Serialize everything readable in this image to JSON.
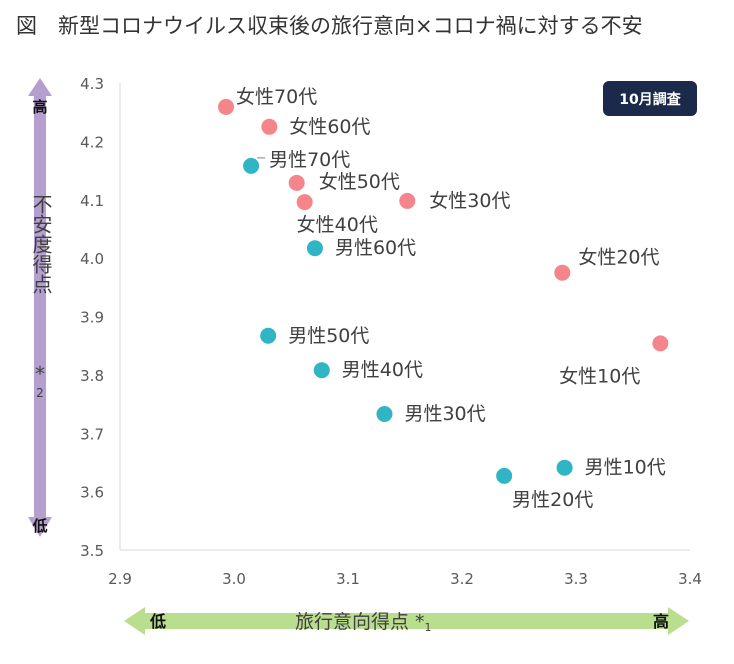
{
  "title": "図　新型コロナウイルス収束後の旅行意向×コロナ禍に対する不安",
  "badge": "10月調査",
  "colors": {
    "female": "#f4868b",
    "male": "#2fb5c4",
    "y_arrow": "#b49fcf",
    "x_arrow": "#b9de8e"
  },
  "y_arrow": {
    "top_label": "高",
    "bottom_label": "低",
    "label": "不安度得点",
    "note": "*2"
  },
  "x_arrow": {
    "left_label": "低",
    "right_label": "高",
    "label": "旅行意向得点",
    "note": "*1"
  },
  "chart_data": {
    "type": "scatter",
    "title": "図　新型コロナウイルス収束後の旅行意向×コロナ禍に対する不安",
    "xlabel": "旅行意向得点 *1",
    "ylabel": "不安度得点 *2",
    "xlim": [
      2.9,
      3.4
    ],
    "ylim": [
      3.5,
      4.3
    ],
    "xticks": [
      "2.9",
      "3.0",
      "3.1",
      "3.2",
      "3.3",
      "3.4"
    ],
    "yticks": [
      "3.5",
      "3.6",
      "3.7",
      "3.8",
      "3.9",
      "4.0",
      "4.1",
      "4.2",
      "4.3"
    ],
    "grid": false,
    "points": [
      {
        "label": "女性70代",
        "group": "female",
        "x": 2.993,
        "y": 4.259
      },
      {
        "label": "女性60代",
        "group": "female",
        "x": 3.031,
        "y": 4.225
      },
      {
        "label": "男性70代",
        "group": "male",
        "x": 3.015,
        "y": 4.158
      },
      {
        "label": "女性50代",
        "group": "female",
        "x": 3.055,
        "y": 4.129
      },
      {
        "label": "女性40代",
        "group": "female",
        "x": 3.062,
        "y": 4.096
      },
      {
        "label": "女性30代",
        "group": "female",
        "x": 3.152,
        "y": 4.098
      },
      {
        "label": "男性60代",
        "group": "male",
        "x": 3.071,
        "y": 4.017
      },
      {
        "label": "女性20代",
        "group": "female",
        "x": 3.288,
        "y": 3.975
      },
      {
        "label": "男性50代",
        "group": "male",
        "x": 3.03,
        "y": 3.867
      },
      {
        "label": "女性10代",
        "group": "female",
        "x": 3.374,
        "y": 3.854
      },
      {
        "label": "男性40代",
        "group": "male",
        "x": 3.077,
        "y": 3.808
      },
      {
        "label": "男性30代",
        "group": "male",
        "x": 3.132,
        "y": 3.733
      },
      {
        "label": "男性20代",
        "group": "male",
        "x": 3.237,
        "y": 3.627
      },
      {
        "label": "男性10代",
        "group": "male",
        "x": 3.29,
        "y": 3.641
      }
    ]
  }
}
